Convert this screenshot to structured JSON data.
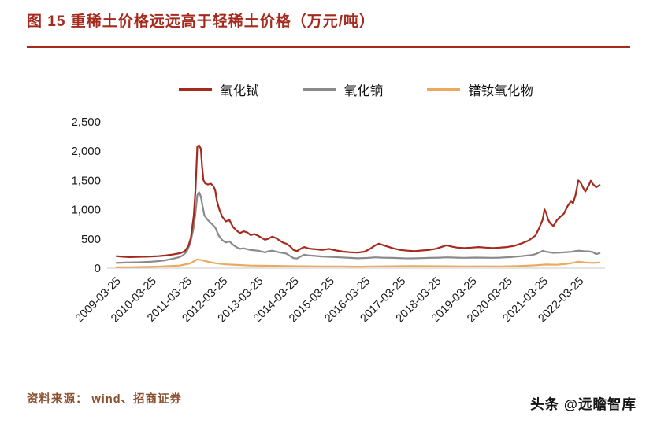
{
  "figure": {
    "title": "图 15  重稀土价格远远高于轻稀土价格（万元/吨）",
    "source": "资料来源：  wind、招商证券",
    "watermark": "头条 @远瞻智库"
  },
  "colors": {
    "title_red": "#a52a1d",
    "source_brown": "#8a4f2e",
    "axis_text": "#1a1a1a",
    "baseline_gray": "#c8c8c8"
  },
  "chart_data": {
    "type": "line",
    "title": "重稀土价格远远高于轻稀土价格（万元/吨）",
    "legend_position": "top",
    "grid": false,
    "xlim": [
      2009.1,
      2022.95
    ],
    "ylim": [
      0,
      2500
    ],
    "yticks": [
      0,
      500,
      1000,
      1500,
      2000,
      2500
    ],
    "ytick_labels": [
      "0",
      "500",
      "1,000",
      "1,500",
      "2,000",
      "2,500"
    ],
    "xtick_positions": [
      2009.23,
      2010.23,
      2011.23,
      2012.23,
      2013.23,
      2014.23,
      2015.23,
      2016.23,
      2017.23,
      2018.23,
      2019.23,
      2020.23,
      2021.23,
      2022.23
    ],
    "xtick_labels": [
      "2009-03-25",
      "2010-03-25",
      "2011-03-25",
      "2012-03-25",
      "2013-03-25",
      "2014-03-25",
      "2015-03-25",
      "2016-03-25",
      "2017-03-25",
      "2018-03-25",
      "2019-03-25",
      "2020-03-25",
      "2021-03-25",
      "2022-03-25"
    ],
    "series": [
      {
        "name": "氧化铽",
        "slug": "terbium-oxide",
        "color": "#a52a1d",
        "points": [
          [
            2009.23,
            205
          ],
          [
            2009.4,
            196
          ],
          [
            2009.6,
            190
          ],
          [
            2009.8,
            192
          ],
          [
            2010.0,
            196
          ],
          [
            2010.2,
            200
          ],
          [
            2010.4,
            206
          ],
          [
            2010.6,
            216
          ],
          [
            2010.8,
            232
          ],
          [
            2010.95,
            248
          ],
          [
            2011.05,
            262
          ],
          [
            2011.15,
            292
          ],
          [
            2011.25,
            380
          ],
          [
            2011.32,
            520
          ],
          [
            2011.4,
            900
          ],
          [
            2011.45,
            1350
          ],
          [
            2011.5,
            2080
          ],
          [
            2011.55,
            2100
          ],
          [
            2011.6,
            2040
          ],
          [
            2011.63,
            1760
          ],
          [
            2011.67,
            1510
          ],
          [
            2011.72,
            1450
          ],
          [
            2011.8,
            1430
          ],
          [
            2011.88,
            1445
          ],
          [
            2011.95,
            1400
          ],
          [
            2012.0,
            1340
          ],
          [
            2012.05,
            1150
          ],
          [
            2012.12,
            1000
          ],
          [
            2012.2,
            880
          ],
          [
            2012.3,
            800
          ],
          [
            2012.4,
            825
          ],
          [
            2012.5,
            705
          ],
          [
            2012.6,
            645
          ],
          [
            2012.7,
            600
          ],
          [
            2012.8,
            630
          ],
          [
            2012.9,
            612
          ],
          [
            2013.0,
            565
          ],
          [
            2013.1,
            585
          ],
          [
            2013.2,
            558
          ],
          [
            2013.3,
            522
          ],
          [
            2013.4,
            486
          ],
          [
            2013.5,
            505
          ],
          [
            2013.6,
            540
          ],
          [
            2013.7,
            518
          ],
          [
            2013.8,
            478
          ],
          [
            2013.9,
            440
          ],
          [
            2014.0,
            418
          ],
          [
            2014.1,
            378
          ],
          [
            2014.2,
            312
          ],
          [
            2014.3,
            292
          ],
          [
            2014.4,
            332
          ],
          [
            2014.5,
            362
          ],
          [
            2014.6,
            342
          ],
          [
            2014.7,
            330
          ],
          [
            2014.85,
            322
          ],
          [
            2015.0,
            312
          ],
          [
            2015.2,
            330
          ],
          [
            2015.4,
            302
          ],
          [
            2015.6,
            282
          ],
          [
            2015.8,
            272
          ],
          [
            2016.0,
            266
          ],
          [
            2016.2,
            282
          ],
          [
            2016.35,
            330
          ],
          [
            2016.5,
            392
          ],
          [
            2016.6,
            420
          ],
          [
            2016.7,
            398
          ],
          [
            2016.85,
            368
          ],
          [
            2017.0,
            340
          ],
          [
            2017.2,
            312
          ],
          [
            2017.4,
            300
          ],
          [
            2017.6,
            292
          ],
          [
            2017.8,
            302
          ],
          [
            2018.0,
            312
          ],
          [
            2018.2,
            332
          ],
          [
            2018.35,
            362
          ],
          [
            2018.5,
            392
          ],
          [
            2018.65,
            368
          ],
          [
            2018.8,
            352
          ],
          [
            2019.0,
            346
          ],
          [
            2019.2,
            352
          ],
          [
            2019.4,
            362
          ],
          [
            2019.6,
            352
          ],
          [
            2019.8,
            346
          ],
          [
            2020.0,
            352
          ],
          [
            2020.2,
            362
          ],
          [
            2020.4,
            382
          ],
          [
            2020.6,
            422
          ],
          [
            2020.8,
            472
          ],
          [
            2021.0,
            562
          ],
          [
            2021.1,
            685
          ],
          [
            2021.2,
            830
          ],
          [
            2021.25,
            1005
          ],
          [
            2021.3,
            945
          ],
          [
            2021.35,
            830
          ],
          [
            2021.42,
            762
          ],
          [
            2021.5,
            722
          ],
          [
            2021.6,
            822
          ],
          [
            2021.7,
            882
          ],
          [
            2021.8,
            935
          ],
          [
            2021.9,
            1060
          ],
          [
            2022.0,
            1150
          ],
          [
            2022.05,
            1105
          ],
          [
            2022.12,
            1245
          ],
          [
            2022.2,
            1500
          ],
          [
            2022.27,
            1455
          ],
          [
            2022.33,
            1380
          ],
          [
            2022.4,
            1310
          ],
          [
            2022.5,
            1425
          ],
          [
            2022.55,
            1495
          ],
          [
            2022.62,
            1430
          ],
          [
            2022.7,
            1385
          ],
          [
            2022.8,
            1420
          ]
        ]
      },
      {
        "name": "氧化镝",
        "slug": "dysprosium-oxide",
        "color": "#8a8a8a",
        "points": [
          [
            2009.23,
            90
          ],
          [
            2009.5,
            95
          ],
          [
            2009.8,
            100
          ],
          [
            2010.0,
            105
          ],
          [
            2010.2,
            110
          ],
          [
            2010.4,
            120
          ],
          [
            2010.6,
            135
          ],
          [
            2010.8,
            160
          ],
          [
            2011.0,
            190
          ],
          [
            2011.1,
            222
          ],
          [
            2011.2,
            280
          ],
          [
            2011.3,
            420
          ],
          [
            2011.4,
            700
          ],
          [
            2011.45,
            950
          ],
          [
            2011.5,
            1250
          ],
          [
            2011.55,
            1300
          ],
          [
            2011.6,
            1220
          ],
          [
            2011.65,
            1050
          ],
          [
            2011.7,
            900
          ],
          [
            2011.8,
            820
          ],
          [
            2011.9,
            760
          ],
          [
            2012.0,
            700
          ],
          [
            2012.1,
            560
          ],
          [
            2012.2,
            480
          ],
          [
            2012.3,
            440
          ],
          [
            2012.4,
            460
          ],
          [
            2012.5,
            400
          ],
          [
            2012.6,
            360
          ],
          [
            2012.7,
            330
          ],
          [
            2012.8,
            340
          ],
          [
            2013.0,
            310
          ],
          [
            2013.2,
            300
          ],
          [
            2013.4,
            270
          ],
          [
            2013.5,
            290
          ],
          [
            2013.6,
            300
          ],
          [
            2013.8,
            270
          ],
          [
            2014.0,
            250
          ],
          [
            2014.1,
            210
          ],
          [
            2014.2,
            172
          ],
          [
            2014.3,
            166
          ],
          [
            2014.4,
            200
          ],
          [
            2014.5,
            230
          ],
          [
            2014.6,
            220
          ],
          [
            2014.8,
            210
          ],
          [
            2015.0,
            200
          ],
          [
            2015.2,
            195
          ],
          [
            2015.5,
            186
          ],
          [
            2015.8,
            176
          ],
          [
            2016.0,
            170
          ],
          [
            2016.3,
            176
          ],
          [
            2016.5,
            186
          ],
          [
            2016.7,
            180
          ],
          [
            2017.0,
            176
          ],
          [
            2017.3,
            170
          ],
          [
            2017.5,
            168
          ],
          [
            2017.8,
            172
          ],
          [
            2018.0,
            176
          ],
          [
            2018.3,
            180
          ],
          [
            2018.5,
            186
          ],
          [
            2018.8,
            180
          ],
          [
            2019.0,
            178
          ],
          [
            2019.3,
            182
          ],
          [
            2019.5,
            180
          ],
          [
            2019.8,
            178
          ],
          [
            2020.0,
            180
          ],
          [
            2020.3,
            190
          ],
          [
            2020.6,
            206
          ],
          [
            2020.9,
            226
          ],
          [
            2021.0,
            240
          ],
          [
            2021.2,
            296
          ],
          [
            2021.3,
            280
          ],
          [
            2021.5,
            262
          ],
          [
            2021.7,
            266
          ],
          [
            2021.9,
            276
          ],
          [
            2022.0,
            280
          ],
          [
            2022.1,
            290
          ],
          [
            2022.2,
            300
          ],
          [
            2022.35,
            290
          ],
          [
            2022.5,
            286
          ],
          [
            2022.6,
            276
          ],
          [
            2022.7,
            240
          ],
          [
            2022.8,
            256
          ]
        ]
      },
      {
        "name": "镨钕氧化物",
        "slug": "praseodymium-neodymium-oxide",
        "color": "#eaa95c",
        "points": [
          [
            2009.23,
            15
          ],
          [
            2009.6,
            16
          ],
          [
            2010.0,
            20
          ],
          [
            2010.5,
            28
          ],
          [
            2011.0,
            45
          ],
          [
            2011.3,
            80
          ],
          [
            2011.5,
            150
          ],
          [
            2011.6,
            140
          ],
          [
            2011.8,
            110
          ],
          [
            2012.0,
            85
          ],
          [
            2012.3,
            65
          ],
          [
            2012.6,
            55
          ],
          [
            2013.0,
            45
          ],
          [
            2013.5,
            40
          ],
          [
            2014.0,
            35
          ],
          [
            2014.5,
            32
          ],
          [
            2015.0,
            30
          ],
          [
            2015.5,
            28
          ],
          [
            2016.0,
            26
          ],
          [
            2016.5,
            30
          ],
          [
            2017.0,
            32
          ],
          [
            2017.5,
            35
          ],
          [
            2018.0,
            34
          ],
          [
            2018.5,
            32
          ],
          [
            2019.0,
            30
          ],
          [
            2019.5,
            31
          ],
          [
            2020.0,
            30
          ],
          [
            2020.5,
            35
          ],
          [
            2021.0,
            50
          ],
          [
            2021.3,
            62
          ],
          [
            2021.6,
            58
          ],
          [
            2021.9,
            75
          ],
          [
            2022.0,
            85
          ],
          [
            2022.2,
            110
          ],
          [
            2022.4,
            95
          ],
          [
            2022.6,
            90
          ],
          [
            2022.8,
            95
          ]
        ]
      }
    ]
  }
}
